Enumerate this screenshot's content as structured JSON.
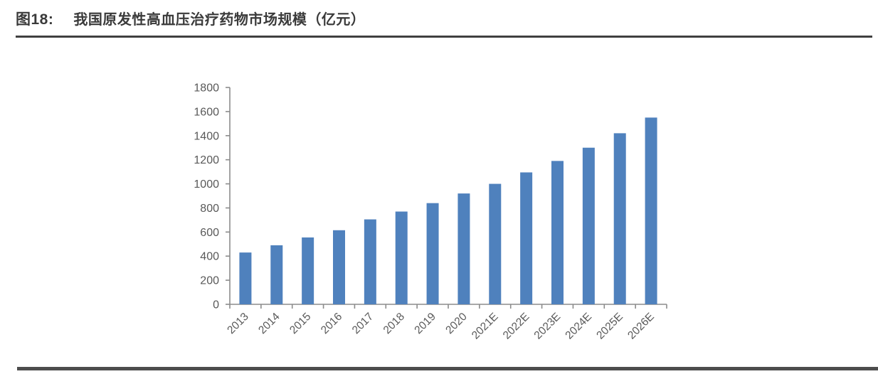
{
  "figure": {
    "label": "图18:",
    "title": "我国原发性高血压治疗药物市场规模（亿元）"
  },
  "chart_data": {
    "type": "bar",
    "title": "我国原发性高血压治疗药物市场规模（亿元）",
    "categories": [
      "2013",
      "2014",
      "2015",
      "2016",
      "2017",
      "2018",
      "2019",
      "2020",
      "2021E",
      "2022E",
      "2023E",
      "2024E",
      "2025E",
      "2026E"
    ],
    "values": [
      430,
      490,
      555,
      615,
      705,
      770,
      840,
      920,
      1000,
      1095,
      1190,
      1300,
      1420,
      1550
    ],
    "xlabel": "",
    "ylabel": "",
    "ylim": [
      0,
      1800
    ],
    "ytick_step": 200,
    "grid": false,
    "legend_position": "none",
    "bar_color": "#4F81BD",
    "axis_color": "#8C8C8C",
    "tick_label_color": "#595959"
  },
  "colors": {
    "title_text": "#3A3A3A",
    "title_rule": "#404040",
    "bottom_rule": "#4D4D4D"
  }
}
